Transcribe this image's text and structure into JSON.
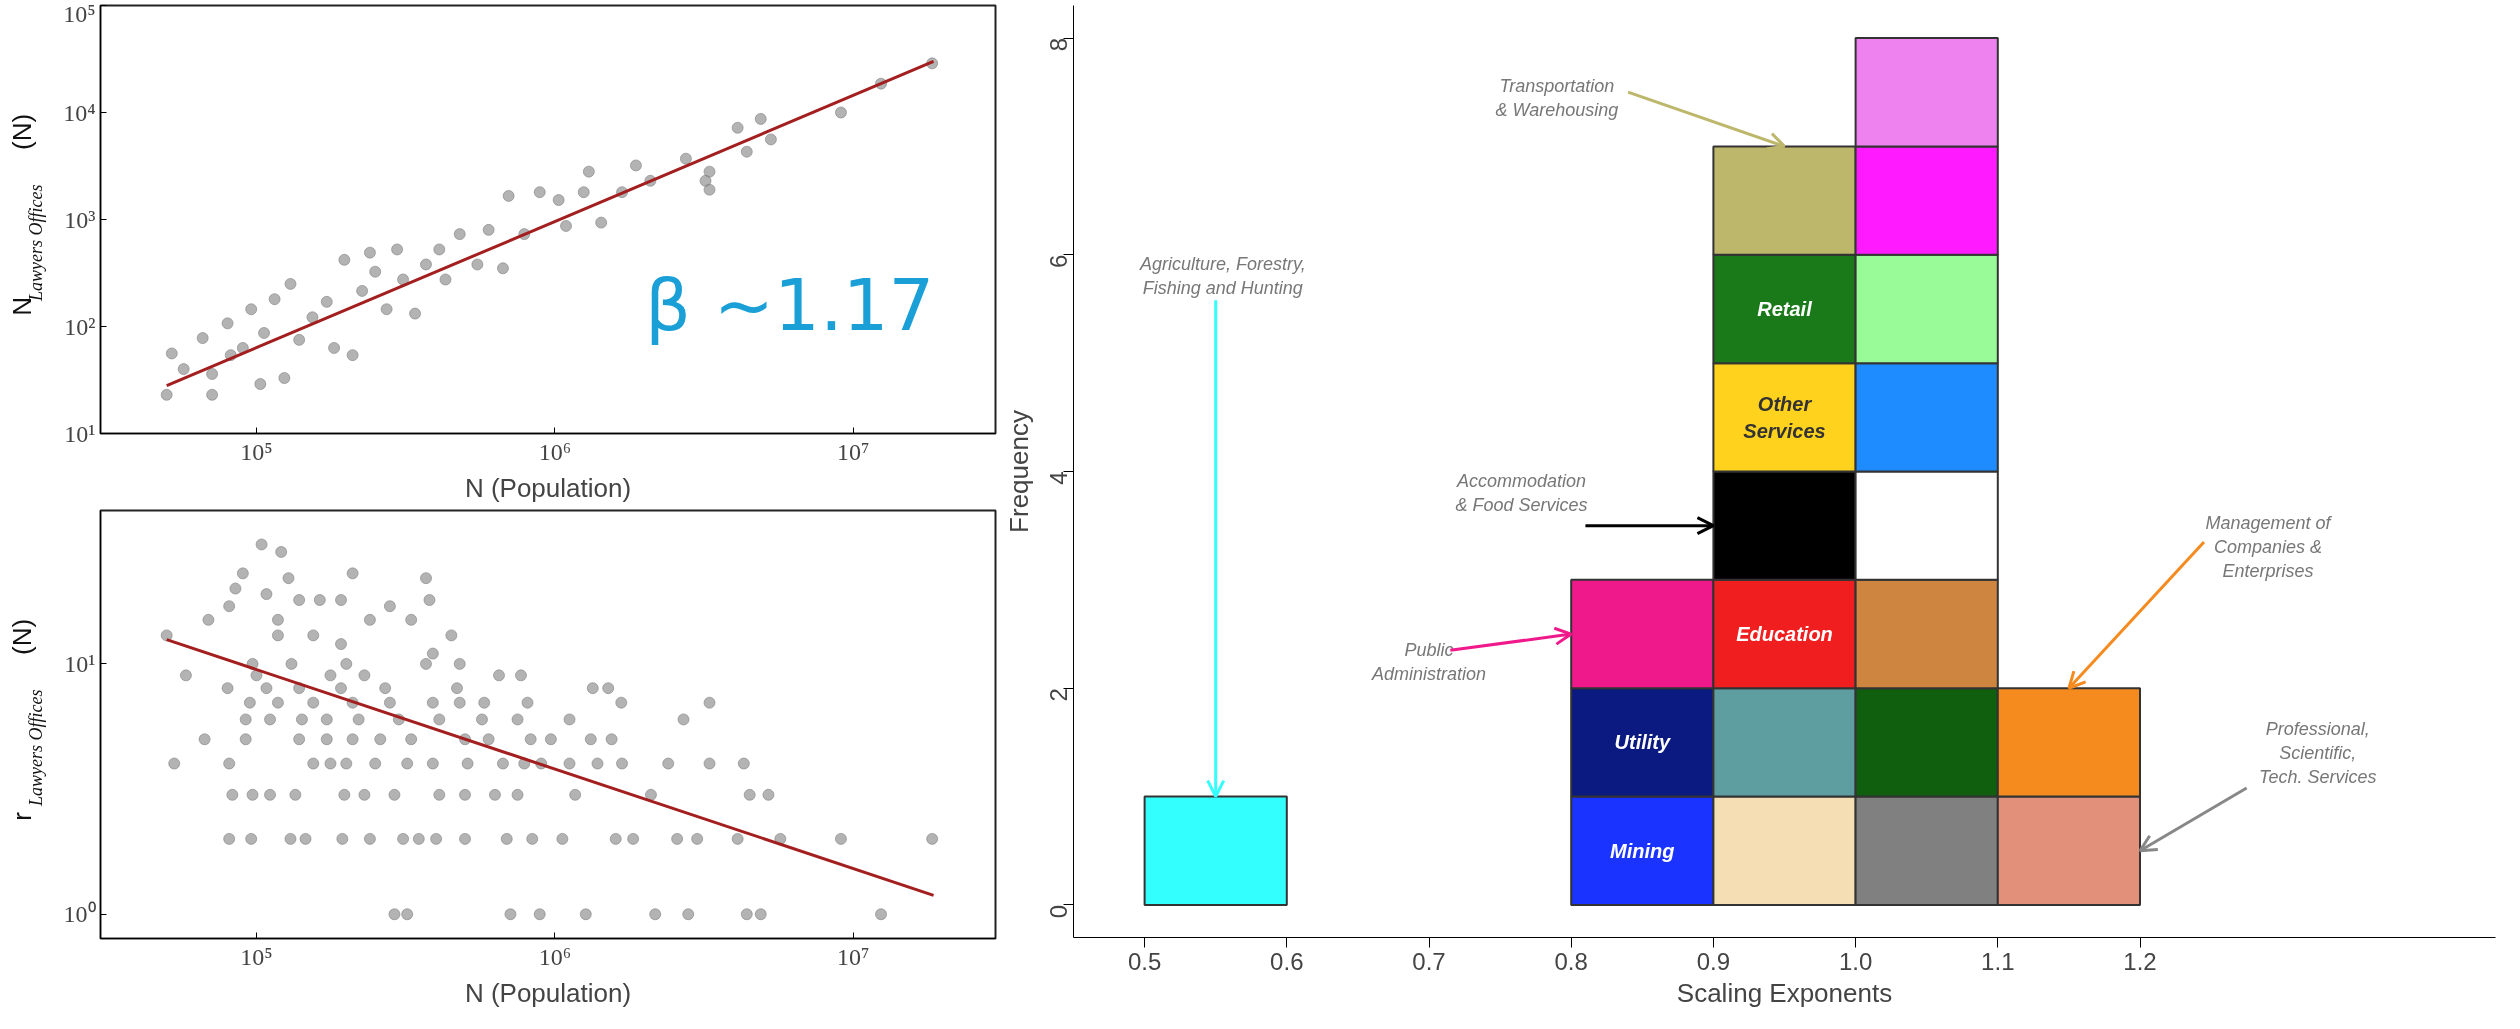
{
  "chart_data": [
    {
      "type": "scatter",
      "xlabel": "N (Population)",
      "ylabel": "N$_{Lawyers Offices}$(N)",
      "log": "xy",
      "grid": false,
      "marker": "circle",
      "xlim": [
        30000,
        30000000
      ],
      "ylim": [
        10,
        100000
      ],
      "xticks": [
        {
          "value": 100000,
          "label": "10⁵"
        },
        {
          "value": 1000000,
          "label": "10⁶"
        },
        {
          "value": 10000000,
          "label": "10⁷"
        }
      ],
      "yticks": [
        {
          "value": 10,
          "label": "10¹"
        },
        {
          "value": 100,
          "label": "10²"
        },
        {
          "value": 1000,
          "label": "10³"
        },
        {
          "value": 10000,
          "label": "10⁴"
        },
        {
          "value": 100000,
          "label": "10⁵"
        }
      ],
      "annotations": [
        "β ~1.17"
      ],
      "series": [
        {
          "type": "scatter",
          "color": "#808080",
          "x": [
            50000.0,
            52000.0,
            57000.0,
            66000.0,
            71000.0,
            71000.0,
            80000.0,
            82000.0,
            90000.0,
            96000.0,
            103000.0,
            106000.0,
            115000.0,
            124000.0,
            130000.0,
            139000.0,
            154000.0,
            172000.0,
            182000.0,
            197000.0,
            210000.0,
            226000.0,
            240000.0,
            250000.0,
            273000.0,
            296000.0,
            310000.0,
            340000.0,
            370000.0,
            410000.0,
            430000.0,
            480000.0,
            550000.0,
            600000.0,
            670000.0,
            700000.0,
            790000.0,
            890000.0,
            1030000.0,
            1090000.0,
            1250000.0,
            1300000.0,
            1430000.0,
            1680000.0,
            1870000.0,
            2090000.0,
            2750000.0,
            3200000.0,
            3300000.0,
            3300000.0,
            4100000.0,
            4400000.0,
            4900000.0,
            5300000.0,
            9100000.0,
            12400000.0,
            18400000.0
          ],
          "values": [
            23,
            56,
            40,
            78,
            23,
            36,
            107,
            54,
            63,
            145,
            29,
            87,
            180,
            33,
            250,
            75,
            122,
            170,
            63,
            420,
            54,
            215,
            490,
            325,
            145,
            525,
            275,
            132,
            380,
            525,
            275,
            730,
            380,
            800,
            350,
            1660,
            730,
            1800,
            1520,
            870,
            1800,
            2800,
            935,
            1800,
            3200,
            2300,
            3700,
            2300,
            1900,
            2800,
            7200,
            4300,
            8700,
            5600,
            10000,
            18600,
            28800
          ]
        },
        {
          "type": "line",
          "marker": "none",
          "color": "#a31f1f",
          "x": [
            50000,
            18600000
          ],
          "values": [
            28,
            30000
          ]
        }
      ]
    },
    {
      "type": "scatter",
      "xlabel": "N (Population)",
      "ylabel": "r$_{Lawyers Offices}$(N)",
      "log": "xy",
      "grid": false,
      "marker": "circle",
      "xlim": [
        30000,
        30000000
      ],
      "ylim": [
        0.8,
        41
      ],
      "xticks": [
        {
          "value": 100000,
          "label": "10⁵"
        },
        {
          "value": 1000000,
          "label": "10⁶"
        },
        {
          "value": 10000000,
          "label": "10⁷"
        }
      ],
      "yticks": [
        {
          "value": 1,
          "label": "10⁰"
        },
        {
          "value": 10,
          "label": "10¹"
        }
      ],
      "series": [
        {
          "type": "scatter",
          "color": "#808080",
          "x": [
            290000.0,
            320000.0,
            710000.0,
            890000.0,
            1270000.0,
            2170000.0,
            2800000.0,
            4400000.0,
            4900000.0,
            12400000.0,
            81000.0,
            96000.0,
            130000.0,
            146000.0,
            194000.0,
            240000.0,
            310000.0,
            350000.0,
            400000.0,
            500000.0,
            690000.0,
            840000.0,
            1060000.0,
            1600000.0,
            1830000.0,
            2570000.0,
            3000000.0,
            4100000.0,
            5700000.0,
            9100000.0,
            18400000.0,
            83000.0,
            97000.0,
            111000.0,
            135000.0,
            197000.0,
            230000.0,
            290000.0,
            410000.0,
            500000.0,
            630000.0,
            750000.0,
            1170000.0,
            2100000.0,
            4500000.0,
            5200000.0,
            53000.0,
            81000.0,
            155000.0,
            177000.0,
            200000.0,
            250000.0,
            320000.0,
            390000.0,
            510000.0,
            670000.0,
            790000.0,
            900000.0,
            1120000.0,
            1390000.0,
            1680000.0,
            2400000.0,
            3300000.0,
            4300000.0,
            67000.0,
            92000.0,
            139000.0,
            172000.0,
            210000.0,
            260000.0,
            330000.0,
            500000.0,
            600000.0,
            830000.0,
            970000.0,
            1320000.0,
            1550000.0,
            92000.0,
            111000.0,
            142000.0,
            172000.0,
            220000.0,
            300000.0,
            410000.0,
            570000.0,
            750000.0,
            1120000.0,
            2700000.0,
            95000.0,
            118000.0,
            155000.0,
            210000.0,
            280000.0,
            390000.0,
            480000.0,
            580000.0,
            810000.0,
            1670000.0,
            3300000.0,
            80000.0,
            108000.0,
            139000.0,
            192000.0,
            270000.0,
            470000.0,
            1340000.0,
            1510000.0,
            58000.0,
            100000.0,
            177000.0,
            230000.0,
            650000.0,
            770000.0,
            97000.0,
            131000.0,
            200000.0,
            370000.0,
            480000.0,
            50000.0,
            69000.0,
            81000.0,
            90000.0,
            85000.0,
            104000.0,
            121000.0,
            128000.0,
            108000.0,
            139000.0,
            163000.0,
            192000.0,
            210000.0,
            240000.0,
            280000.0,
            330000.0,
            370000.0,
            380000.0,
            118000.0,
            155000.0,
            192000.0,
            450000.0,
            390000.0,
            118000.0
          ],
          "values": [
            1,
            1,
            1,
            1,
            1,
            1,
            1,
            1,
            1,
            1,
            2,
            2,
            2,
            2,
            2,
            2,
            2,
            2,
            2,
            2,
            2,
            2,
            2,
            2,
            2,
            2,
            2,
            2,
            2,
            2,
            2,
            3,
            3,
            3,
            3,
            3,
            3,
            3,
            3,
            3,
            3,
            3,
            3,
            3,
            3,
            3,
            4,
            4,
            4,
            4,
            4,
            4,
            4,
            4,
            4,
            4,
            4,
            4,
            4,
            4,
            4,
            4,
            4,
            4,
            5,
            5,
            5,
            5,
            5,
            5,
            5,
            5,
            5,
            5,
            5,
            5,
            5,
            6,
            6,
            6,
            6,
            6,
            6,
            6,
            6,
            6,
            6,
            6,
            7,
            7,
            7,
            7,
            7,
            7,
            7,
            7,
            7,
            7,
            7,
            8,
            8,
            8,
            8,
            8,
            8,
            8,
            8,
            9,
            9,
            9,
            9,
            9,
            9,
            10,
            10,
            10,
            10,
            10,
            13,
            15,
            17,
            23,
            20,
            30,
            28,
            22,
            19,
            18,
            18,
            18,
            23,
            15,
            17,
            15,
            22,
            18,
            13,
            13,
            12,
            13,
            11,
            15
          ]
        },
        {
          "type": "line",
          "marker": "none",
          "color": "#a31f1f",
          "x": [
            50000,
            18600000
          ],
          "values": [
            12.5,
            1.19
          ]
        }
      ]
    },
    {
      "type": "bar",
      "stacked": true,
      "xlabel": "Scaling Exponents",
      "ylabel": "Frequency",
      "grid": false,
      "xlim": [
        0.45,
        1.45
      ],
      "ylim": [
        -0.3,
        8.3
      ],
      "xticks": [
        0.5,
        0.6,
        0.7,
        0.8,
        0.9,
        {
          "value": 1,
          "label": "1.0"
        },
        1.1,
        1.2
      ],
      "yticks": [
        0,
        2,
        4,
        6,
        8
      ],
      "x": [
        0.55,
        0.65,
        0.75,
        0.85,
        0.95,
        1.05,
        1.15
      ],
      "series": [
        {
          "values": [
            1,
            null,
            null,
            1,
            1,
            1,
            1
          ],
          "colors": [
            "#33ffff",
            null,
            null,
            "#1a33ff",
            "#f5deb3",
            "#808080",
            "#e2907a"
          ]
        },
        {
          "values": [
            null,
            null,
            null,
            1,
            1,
            1,
            1
          ],
          "colors": [
            null,
            null,
            null,
            "#0a1a80",
            "#5f9ea0",
            "#0f5f0f",
            "#f58a1f"
          ]
        },
        {
          "values": [
            null,
            null,
            null,
            1,
            1,
            1,
            null
          ],
          "colors": [
            null,
            null,
            null,
            "#f0198c",
            "#f01e1e",
            "#cd853f",
            null
          ]
        },
        {
          "values": [
            null,
            null,
            null,
            null,
            1,
            1,
            null
          ],
          "colors": [
            null,
            null,
            null,
            null,
            "#000000",
            "#ffffff",
            null
          ]
        },
        {
          "values": [
            null,
            null,
            null,
            null,
            1,
            1,
            null
          ],
          "colors": [
            null,
            null,
            null,
            null,
            "#ffd21e",
            "#1e8cff",
            null
          ]
        },
        {
          "values": [
            null,
            null,
            null,
            null,
            1,
            1,
            null
          ],
          "colors": [
            null,
            null,
            null,
            null,
            "#1a7a1a",
            "#98fb98",
            null
          ]
        },
        {
          "values": [
            null,
            null,
            null,
            null,
            1,
            1,
            null
          ],
          "colors": [
            null,
            null,
            null,
            null,
            "#bdb76b",
            "#ff1aff",
            null
          ]
        },
        {
          "values": [
            null,
            null,
            null,
            null,
            null,
            1,
            null
          ],
          "colors": [
            null,
            null,
            null,
            null,
            null,
            "#ee82ee",
            null
          ]
        }
      ],
      "annotations": [
        {
          "text": "Agriculture, Forestry,\nFishing and Hunting",
          "x": 0.55,
          "y": 1
        },
        {
          "text": "Transportation\n& Warehousing",
          "x": 0.95,
          "y": 7
        },
        {
          "text": "Accommodation\n& Food Services",
          "x": 0.9,
          "y": 3.5
        },
        {
          "text": "Public\nAdministration",
          "x": 0.8,
          "y": 2.5
        },
        {
          "text": "Management of\nCompanies &\nEnterprises",
          "x": 1.15,
          "y": 2
        },
        {
          "text": "Professional,\nScientific,\nTech. Services",
          "x": 1.2,
          "y": 0.5
        },
        "Mining",
        "Utility",
        "Education",
        "Other\nServices",
        "Retail"
      ]
    }
  ]
}
